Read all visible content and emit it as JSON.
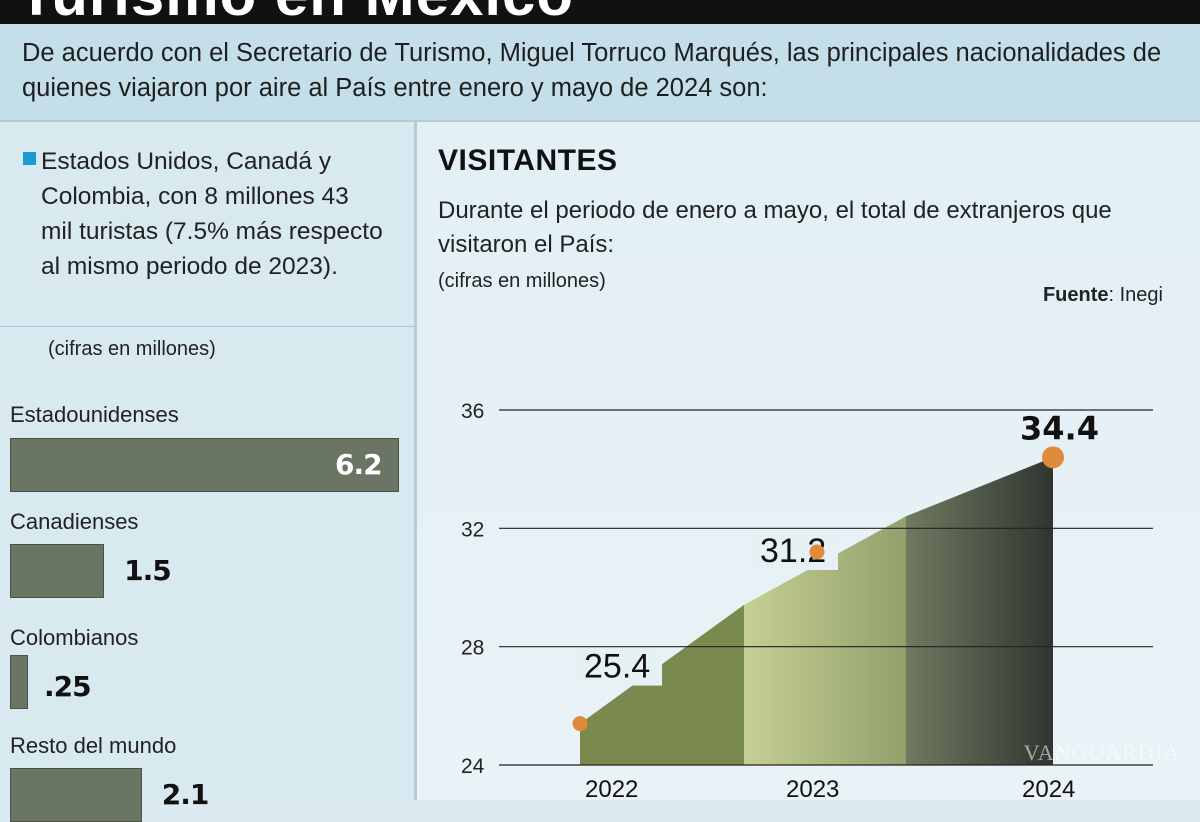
{
  "header": {
    "title": "Turismo en México"
  },
  "intro": {
    "text": "De acuerdo con el Secretario de Turismo, Miguel Torruco Marqués, las principales nacionalidades de quienes viajaron por aire al País entre enero y mayo de 2024 son:"
  },
  "left": {
    "summary": "Estados Unidos, Canadá y Colombia, con 8 millones 43 mil turistas (7.5% más respecto al mismo periodo de 2023).",
    "units": "(cifras en millones)",
    "marker_color": "#1d9ad6",
    "bars": [
      {
        "label": "Estadounidenses",
        "value": 6.2,
        "value_label": "6.2"
      },
      {
        "label": "Canadienses",
        "value": 1.5,
        "value_label": "1.5"
      },
      {
        "label": "Colombianos",
        "value": 0.25,
        "value_label": ".25"
      },
      {
        "label": "Resto del mundo",
        "value": 2.1,
        "value_label": "2.1"
      }
    ]
  },
  "right": {
    "title": "VISITANTES",
    "subtitle": "Durante el periodo de enero a mayo, el total de extranjeros que visitaron el País:",
    "units": "(cifras en millones)",
    "source_label": "Fuente",
    "source_value": ": Inegi"
  },
  "chart_data": {
    "type": "area",
    "title": "VISITANTES",
    "ylabel": "",
    "xlabel": "",
    "ylim": [
      24,
      36
    ],
    "yticks": [
      24,
      28,
      32,
      36
    ],
    "x": [
      "2022",
      "2023",
      "2024"
    ],
    "series": [
      {
        "values": [
          25.4,
          31.2,
          34.4
        ],
        "labels": [
          "25.4",
          "31.2",
          "34.4"
        ]
      }
    ],
    "colors": {
      "segment_2022": "#7a8a4f",
      "segment_2023_light": "#c5cf93",
      "segment_2023_dark": "#93a06c",
      "segment_2024_light": "#6f7a60",
      "segment_2024_dark": "#2f3630",
      "point": "#e08a3c"
    }
  },
  "watermark": "VANGUARDIA"
}
